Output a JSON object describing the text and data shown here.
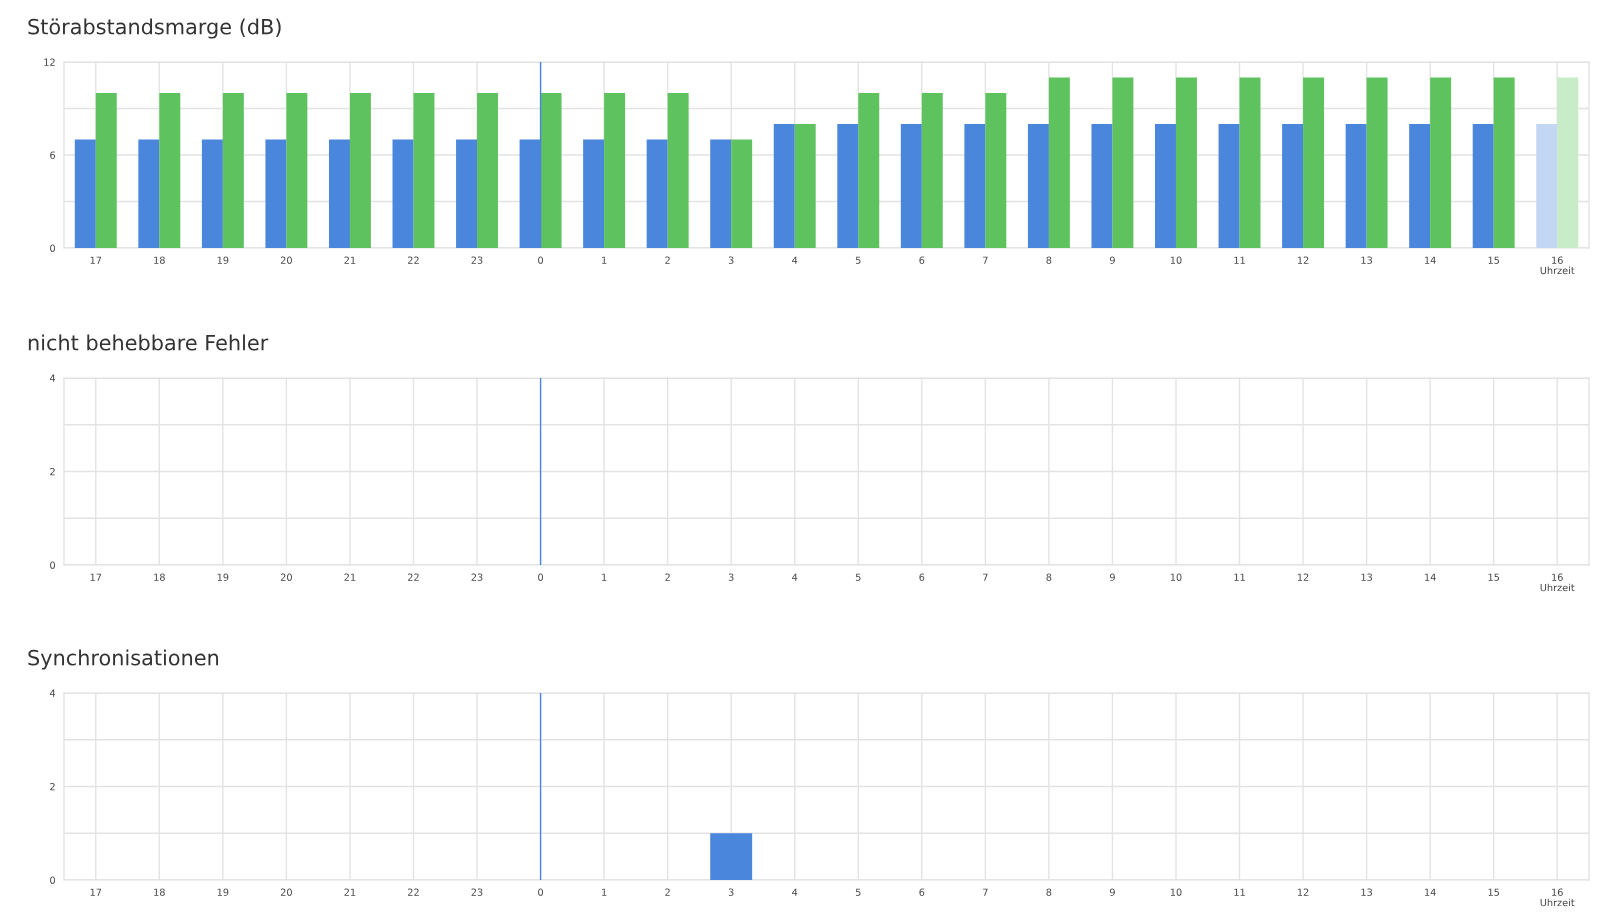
{
  "chart_data": [
    {
      "type": "bar",
      "title": "Störabstandsmarge (dB)",
      "xlabel": "Uhrzeit",
      "categories": [
        "17",
        "18",
        "19",
        "20",
        "21",
        "22",
        "23",
        "0",
        "1",
        "2",
        "3",
        "4",
        "5",
        "6",
        "7",
        "8",
        "9",
        "10",
        "11",
        "12",
        "13",
        "14",
        "15",
        "16"
      ],
      "series": [
        {
          "colors": [
            "#4a86dc",
            "#4a86dc",
            "#4a86dc",
            "#4a86dc",
            "#4a86dc",
            "#4a86dc",
            "#4a86dc",
            "#4a86dc",
            "#4a86dc",
            "#4a86dc",
            "#4a86dc",
            "#4a86dc",
            "#4a86dc",
            "#4a86dc",
            "#4a86dc",
            "#4a86dc",
            "#4a86dc",
            "#4a86dc",
            "#4a86dc",
            "#4a86dc",
            "#4a86dc",
            "#4a86dc",
            "#4a86dc",
            "#c3d6f3"
          ],
          "values": [
            7,
            7,
            7,
            7,
            7,
            7,
            7,
            7,
            7,
            7,
            7,
            8,
            8,
            8,
            8,
            8,
            8,
            8,
            8,
            8,
            8,
            8,
            8,
            8
          ]
        },
        {
          "colors": [
            "#5ec35e",
            "#5ec35e",
            "#5ec35e",
            "#5ec35e",
            "#5ec35e",
            "#5ec35e",
            "#5ec35e",
            "#5ec35e",
            "#5ec35e",
            "#5ec35e",
            "#5ec35e",
            "#5ec35e",
            "#5ec35e",
            "#5ec35e",
            "#5ec35e",
            "#5ec35e",
            "#5ec35e",
            "#5ec35e",
            "#5ec35e",
            "#5ec35e",
            "#5ec35e",
            "#5ec35e",
            "#5ec35e",
            "#c8ebc8"
          ],
          "values": [
            10,
            10,
            10,
            10,
            10,
            10,
            10,
            10,
            10,
            10,
            7,
            8,
            10,
            10,
            10,
            11,
            11,
            11,
            11,
            11,
            11,
            11,
            11,
            11
          ]
        }
      ],
      "ylim": [
        0,
        12
      ],
      "yticks": [
        0,
        {
          "value": 3,
          "label": null
        },
        6,
        {
          "value": 9,
          "label": null
        },
        12
      ],
      "grid": true,
      "ref_lines": [
        {
          "axis": "x",
          "value": "0",
          "color": "#4a86dc"
        }
      ]
    },
    {
      "type": "bar",
      "title": "nicht behebbare Fehler",
      "xlabel": "Uhrzeit",
      "categories": [
        "17",
        "18",
        "19",
        "20",
        "21",
        "22",
        "23",
        "0",
        "1",
        "2",
        "3",
        "4",
        "5",
        "6",
        "7",
        "8",
        "9",
        "10",
        "11",
        "12",
        "13",
        "14",
        "15",
        "16"
      ],
      "series": [
        {
          "color": "#4a86dc",
          "values": [
            0,
            0,
            0,
            0,
            0,
            0,
            0,
            0,
            0,
            0,
            0,
            0,
            0,
            0,
            0,
            0,
            0,
            0,
            0,
            0,
            0,
            0,
            0,
            0
          ]
        }
      ],
      "ylim": [
        0,
        4
      ],
      "yticks": [
        0,
        {
          "value": 1,
          "label": null
        },
        2,
        {
          "value": 3,
          "label": null
        },
        4
      ],
      "grid": true,
      "ref_lines": [
        {
          "axis": "x",
          "value": "0",
          "color": "#4a86dc"
        }
      ]
    },
    {
      "type": "bar",
      "title": "Synchronisationen",
      "xlabel": "Uhrzeit",
      "categories": [
        "17",
        "18",
        "19",
        "20",
        "21",
        "22",
        "23",
        "0",
        "1",
        "2",
        "3",
        "4",
        "5",
        "6",
        "7",
        "8",
        "9",
        "10",
        "11",
        "12",
        "13",
        "14",
        "15",
        "16"
      ],
      "series": [
        {
          "color": "#4a86dc",
          "values": [
            0,
            0,
            0,
            0,
            0,
            0,
            0,
            0,
            0,
            0,
            1,
            0,
            0,
            0,
            0,
            0,
            0,
            0,
            0,
            0,
            0,
            0,
            0,
            0
          ]
        }
      ],
      "ylim": [
        0,
        4
      ],
      "yticks": [
        0,
        {
          "value": 1,
          "label": null
        },
        2,
        {
          "value": 3,
          "label": null
        },
        4
      ],
      "grid": true,
      "ref_lines": [
        {
          "axis": "x",
          "value": "0",
          "color": "#4a86dc"
        }
      ]
    }
  ]
}
